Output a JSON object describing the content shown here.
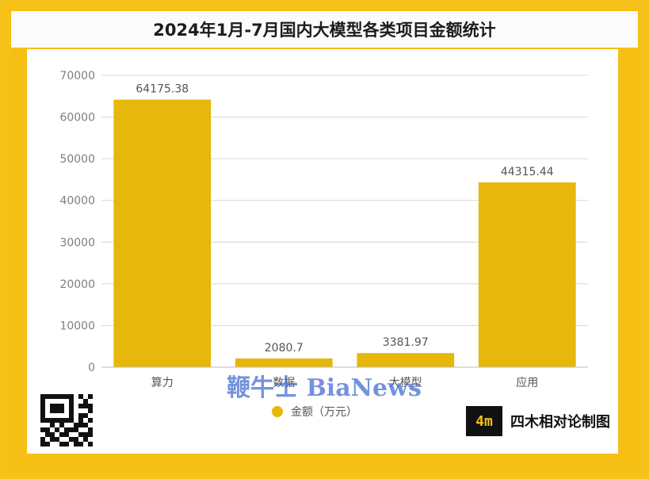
{
  "colors": {
    "accent": "#f6c21a",
    "bar": "#e6b80c",
    "grid": "#d7d7d7",
    "axis_text": "#7f7f7f"
  },
  "watermark": "鞭牛士 BiaNews",
  "brand": {
    "logo_text": "4m",
    "name": "四木相对论制图"
  },
  "chart_data": {
    "type": "bar",
    "title": "2024年1月-7月国内大模型各类项目金额统计",
    "categories": [
      "算力",
      "数据",
      "大模型",
      "应用"
    ],
    "series": [
      {
        "name": "金额（万元）",
        "values": [
          64175.38,
          2080.7,
          3381.97,
          44315.44
        ]
      }
    ],
    "data_labels": [
      "64175.38",
      "2080.7",
      "3381.97",
      "44315.44"
    ],
    "ylim": [
      0,
      70000
    ],
    "yticks": [
      0,
      10000,
      20000,
      30000,
      40000,
      50000,
      60000,
      70000
    ],
    "grid": true,
    "legend": "bottom-center"
  }
}
